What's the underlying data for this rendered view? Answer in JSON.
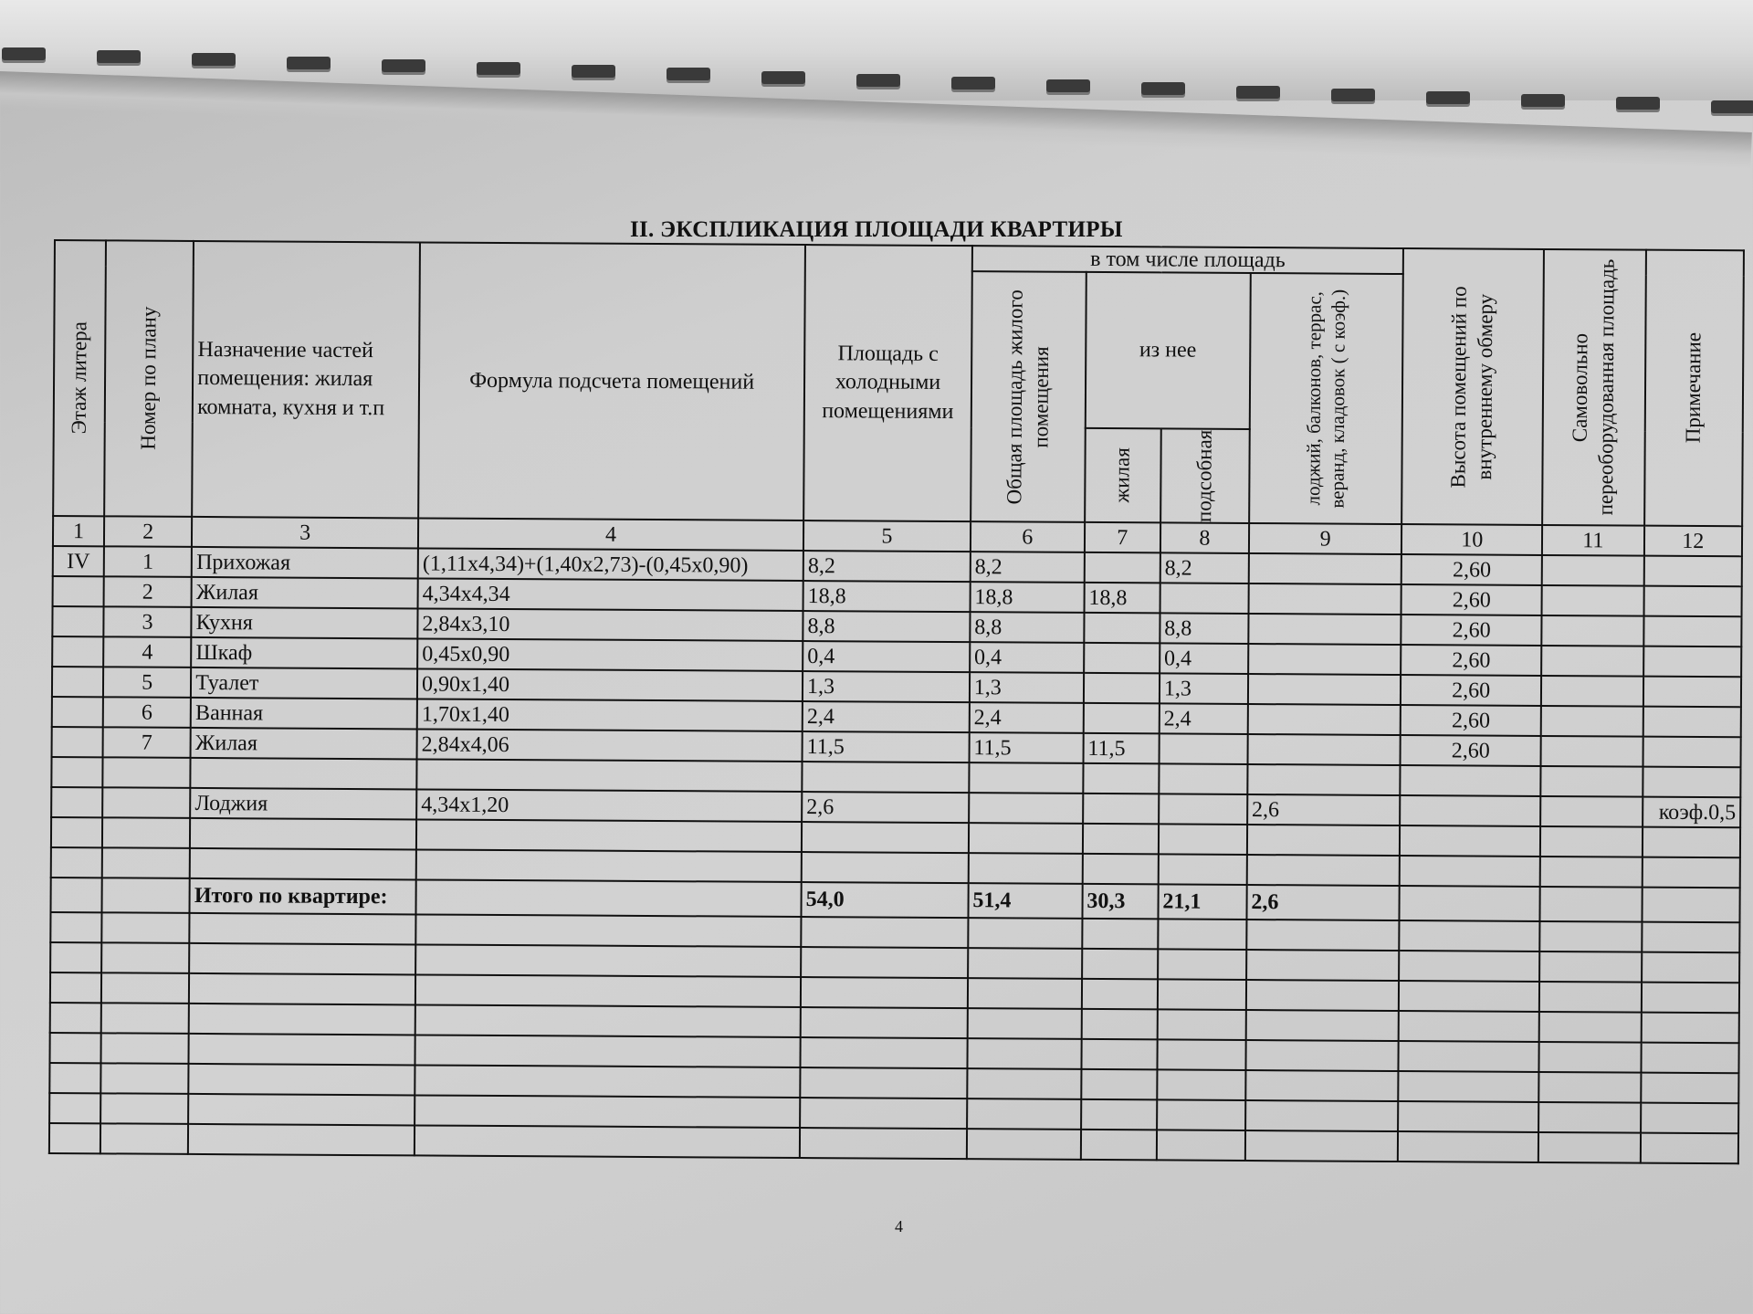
{
  "title": "II. ЭКСПЛИКАЦИЯ ПЛОЩАДИ КВАРТИРЫ",
  "headers": {
    "c1": "Этаж литера",
    "c2": "Номер по плану",
    "c3": "Назначение частей помещения: жилая комната, кухня и т.п",
    "c4": "Формула подсчета помещений",
    "c5": "Площадь с холодными помещениями",
    "group": "в том числе площадь",
    "c6": "Общая площадь жилого помещения",
    "subgroup": "из нее",
    "c7": "жилая",
    "c8": "подсобная",
    "c9": "лоджий, балконов, террас, веранд, кладовок ( с коэф.)",
    "c10": "Высота помещений по внутреннему обмеру",
    "c11": "Самовольно переоборудованная площадь",
    "c12": "Примечание"
  },
  "column_numbers": [
    "1",
    "2",
    "3",
    "4",
    "5",
    "6",
    "7",
    "8",
    "9",
    "10",
    "11",
    "12"
  ],
  "rows": [
    [
      "IV",
      "1",
      "Прихожая",
      "(1,11x4,34)+(1,40x2,73)-(0,45x0,90)",
      "8,2",
      "8,2",
      "",
      "8,2",
      "",
      "2,60",
      "",
      ""
    ],
    [
      "",
      "2",
      "Жилая",
      "4,34x4,34",
      "18,8",
      "18,8",
      "18,8",
      "",
      "",
      "2,60",
      "",
      ""
    ],
    [
      "",
      "3",
      "Кухня",
      "2,84x3,10",
      "8,8",
      "8,8",
      "",
      "8,8",
      "",
      "2,60",
      "",
      ""
    ],
    [
      "",
      "4",
      "Шкаф",
      "0,45x0,90",
      "0,4",
      "0,4",
      "",
      "0,4",
      "",
      "2,60",
      "",
      ""
    ],
    [
      "",
      "5",
      "Туалет",
      "0,90x1,40",
      "1,3",
      "1,3",
      "",
      "1,3",
      "",
      "2,60",
      "",
      ""
    ],
    [
      "",
      "6",
      "Ванная",
      "1,70x1,40",
      "2,4",
      "2,4",
      "",
      "2,4",
      "",
      "2,60",
      "",
      ""
    ],
    [
      "",
      "7",
      "Жилая",
      "2,84x4,06",
      "11,5",
      "11,5",
      "11,5",
      "",
      "",
      "2,60",
      "",
      ""
    ],
    [
      "",
      "",
      "",
      "",
      "",
      "",
      "",
      "",
      "",
      "",
      "",
      ""
    ],
    [
      "",
      "",
      "Лоджия",
      "4,34x1,20",
      "2,6",
      "",
      "",
      "",
      "2,6",
      "",
      "",
      "коэф.0,5"
    ],
    [
      "",
      "",
      "",
      "",
      "",
      "",
      "",
      "",
      "",
      "",
      "",
      ""
    ],
    [
      "",
      "",
      "",
      "",
      "",
      "",
      "",
      "",
      "",
      "",
      "",
      ""
    ]
  ],
  "total": [
    "",
    "",
    "Итого по квартире:",
    "",
    "54,0",
    "51,4",
    "30,3",
    "21,1",
    "2,6",
    "",
    "",
    ""
  ],
  "page_number": "4"
}
